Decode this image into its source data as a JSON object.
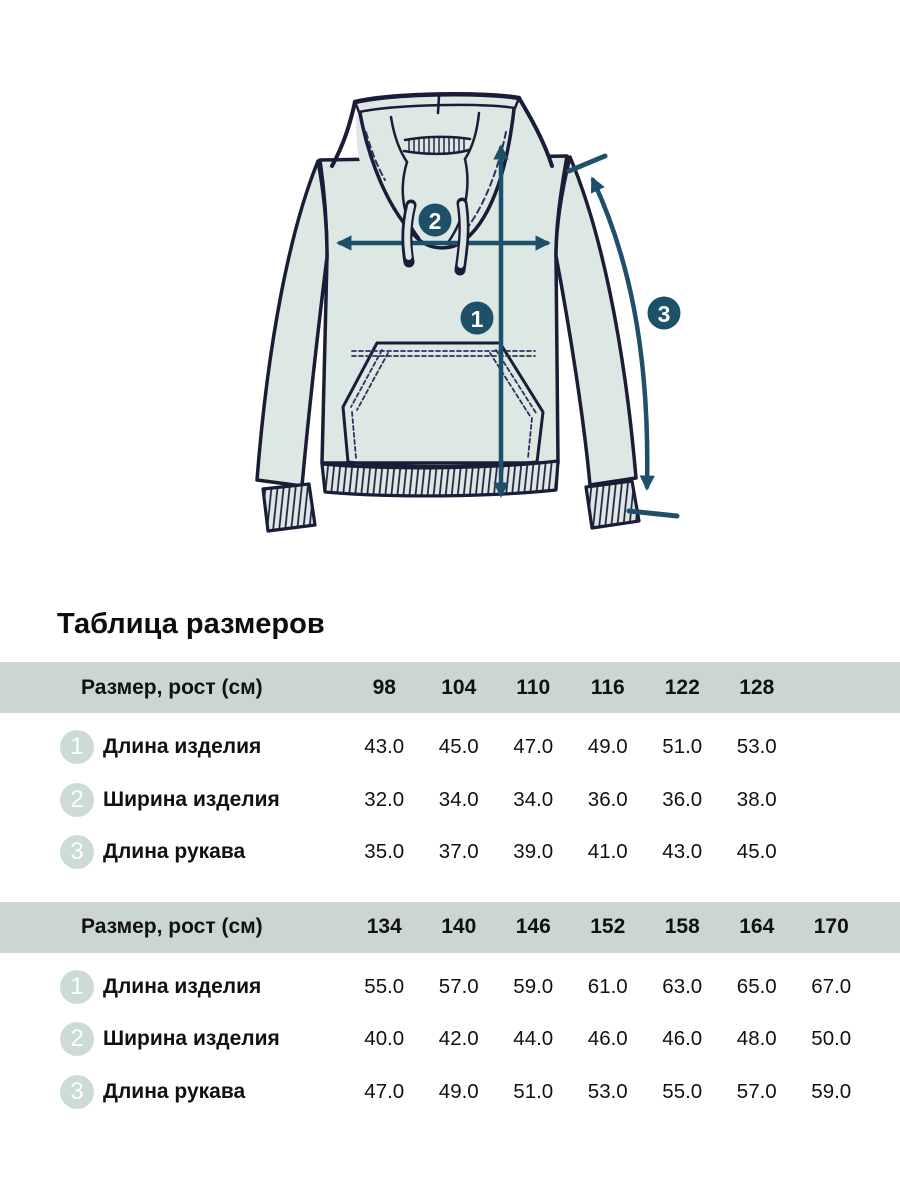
{
  "section_title": "Таблица размеров",
  "colors": {
    "accent_teal": "#1e5069",
    "garment_outline": "#1b1c38",
    "garment_fill": "#dde7e4",
    "header_band_bg": "#cbd6d0",
    "row_badge_bg": "#ccdbd3",
    "text": "#111111"
  },
  "diagram": {
    "markers": [
      {
        "num": "1"
      },
      {
        "num": "2"
      },
      {
        "num": "3"
      }
    ]
  },
  "tables": [
    {
      "header_label": "Размер, рост (см)",
      "sizes": [
        "98",
        "104",
        "110",
        "116",
        "122",
        "128"
      ],
      "rows": [
        {
          "num": "1",
          "label": "Длина изделия",
          "values": [
            "43.0",
            "45.0",
            "47.0",
            "49.0",
            "51.0",
            "53.0"
          ]
        },
        {
          "num": "2",
          "label": "Ширина изделия",
          "values": [
            "32.0",
            "34.0",
            "34.0",
            "36.0",
            "36.0",
            "38.0"
          ]
        },
        {
          "num": "3",
          "label": "Длина рукава",
          "values": [
            "35.0",
            "37.0",
            "39.0",
            "41.0",
            "43.0",
            "45.0"
          ]
        }
      ]
    },
    {
      "header_label": "Размер, рост (см)",
      "sizes": [
        "134",
        "140",
        "146",
        "152",
        "158",
        "164",
        "170"
      ],
      "rows": [
        {
          "num": "1",
          "label": "Длина изделия",
          "values": [
            "55.0",
            "57.0",
            "59.0",
            "61.0",
            "63.0",
            "65.0",
            "67.0"
          ]
        },
        {
          "num": "2",
          "label": "Ширина изделия",
          "values": [
            "40.0",
            "42.0",
            "44.0",
            "46.0",
            "46.0",
            "48.0",
            "50.0"
          ]
        },
        {
          "num": "3",
          "label": "Длина рукава",
          "values": [
            "47.0",
            "49.0",
            "51.0",
            "53.0",
            "55.0",
            "57.0",
            "59.0"
          ]
        }
      ]
    }
  ]
}
